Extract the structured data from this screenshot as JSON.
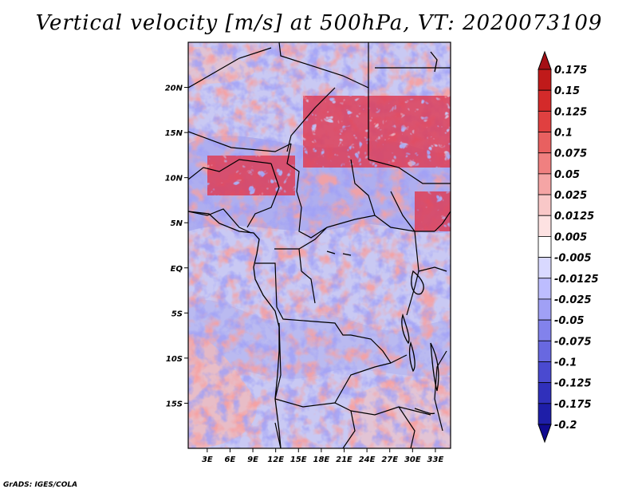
{
  "title": "Vertical velocity [m/s] at 500hPa, VT: 2020073109",
  "footer": "GrADS: IGES/COLA",
  "map": {
    "variable": "Vertical velocity",
    "units": "m/s",
    "level": "500hPa",
    "valid_time": "2020073109",
    "lat_labels": [
      "20N",
      "15N",
      "10N",
      "5N",
      "EQ",
      "5S",
      "10S",
      "15S"
    ],
    "lat_values": [
      20,
      15,
      10,
      5,
      0,
      -5,
      -10,
      -15
    ],
    "lon_labels": [
      "3E",
      "6E",
      "9E",
      "12E",
      "15E",
      "18E",
      "21E",
      "24E",
      "27E",
      "30E",
      "33E"
    ],
    "lon_values": [
      3,
      6,
      9,
      12,
      15,
      18,
      21,
      24,
      27,
      30,
      33
    ],
    "lon_range": [
      0.5,
      35
    ],
    "lat_range": [
      -20,
      25
    ]
  },
  "colorbar": {
    "labels": [
      "0.175",
      "0.15",
      "0.125",
      "0.1",
      "0.075",
      "0.05",
      "0.025",
      "0.0125",
      "0.005",
      "-0.005",
      "-0.0125",
      "-0.025",
      "-0.05",
      "-0.075",
      "-0.1",
      "-0.125",
      "-0.175",
      "-0.2"
    ],
    "colors": [
      "#a50f15",
      "#c01a1a",
      "#d42a2a",
      "#e04040",
      "#e86060",
      "#f08080",
      "#f5a5a5",
      "#f9c8c8",
      "#fde2e2",
      "#ffffff",
      "#d9d9ff",
      "#bdbdff",
      "#a0a0f5",
      "#8282ec",
      "#6868e0",
      "#4a4ad0",
      "#3030bb",
      "#1e1ea8",
      "#100a90"
    ]
  }
}
